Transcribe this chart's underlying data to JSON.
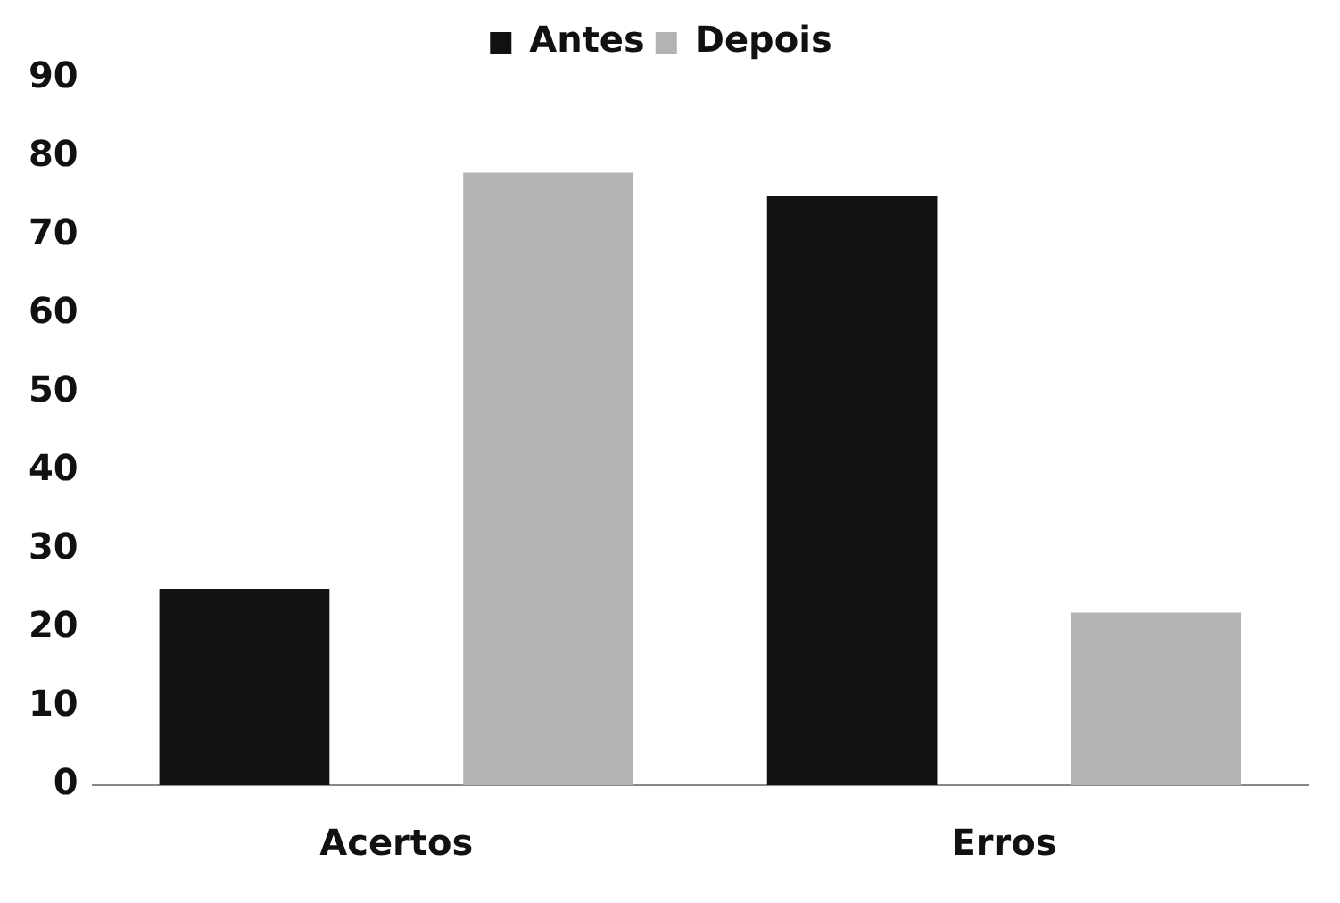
{
  "chart_data": {
    "type": "bar",
    "categories": [
      "Acertos",
      "Erros"
    ],
    "series": [
      {
        "name": "Antes",
        "color": "#111111",
        "values": [
          25,
          75
        ]
      },
      {
        "name": "Depois",
        "color": "#b3b3b3",
        "values": [
          78,
          22
        ]
      }
    ],
    "ylim": [
      0,
      90
    ],
    "yticks": [
      0,
      10,
      20,
      30,
      40,
      50,
      60,
      70,
      80,
      90
    ],
    "grid": false,
    "legend": "top"
  }
}
